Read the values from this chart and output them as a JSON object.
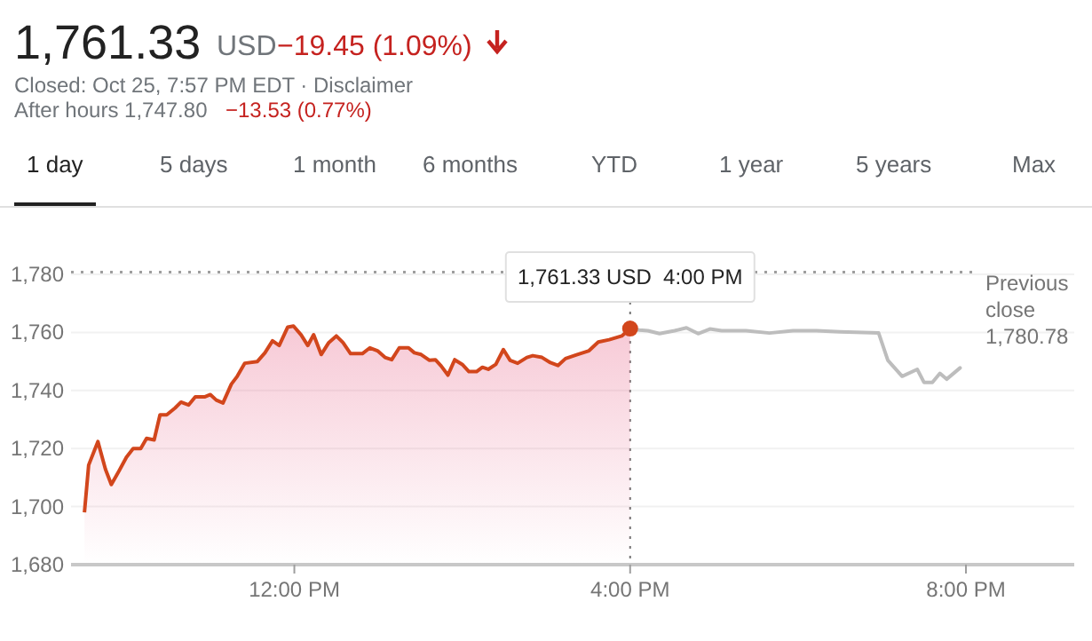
{
  "chart_data": {
    "type": "line",
    "title": "1,761.33",
    "subtitle": "USD",
    "annotations": [
      "−19.45 (1.09%)",
      "Closed: Oct 25, 7:57 PM EDT · Disclaimer",
      "After hours 1,747.80",
      "−13.53 (0.77%)",
      "1 day",
      "5 days",
      "1 month",
      "6 months",
      "YTD",
      "1 year",
      "5 years",
      "Max",
      {
        "text": "1,761.33 USD  4:00 PM",
        "x": 16,
        "y": 1761.33
      }
    ],
    "xlim": [
      9.34,
      21.29
    ],
    "xticks": [
      {
        "value": 12,
        "label": "12:00 PM"
      },
      {
        "value": 16,
        "label": "4:00 PM"
      },
      {
        "value": 20,
        "label": "8:00 PM"
      }
    ],
    "ylim": [
      1680,
      1784
    ],
    "yticks": [
      {
        "value": 1680,
        "label": "1,680"
      },
      {
        "value": 1700,
        "label": "1,700"
      },
      {
        "value": 1720,
        "label": "1,720"
      },
      {
        "value": 1740,
        "label": "1,740"
      },
      {
        "value": 1760,
        "label": "1,760"
      },
      {
        "value": 1780,
        "label": "1,780"
      }
    ],
    "grid": "y",
    "ref_lines": [
      {
        "axis": "y",
        "value": 1780.78,
        "label": "Previous close 1,780.78",
        "color": "#9e9e9e",
        "line_style": "dotted"
      },
      {
        "axis": "x",
        "value": 16,
        "color": "#757575",
        "line_style": "dotted"
      }
    ],
    "series": [
      {
        "type": "area",
        "color": "#d2461c",
        "x": [
          9.5,
          9.55,
          9.66,
          9.75,
          9.82,
          9.91,
          10.0,
          10.08,
          10.17,
          10.24,
          10.33,
          10.4,
          10.48,
          10.58,
          10.65,
          10.74,
          10.82,
          10.93,
          11.0,
          11.07,
          11.15,
          11.25,
          11.32,
          11.41,
          11.56,
          11.65,
          11.74,
          11.82,
          11.92,
          11.99,
          12.08,
          12.16,
          12.23,
          12.32,
          12.41,
          12.5,
          12.58,
          12.67,
          12.81,
          12.9,
          12.99,
          13.08,
          13.16,
          13.25,
          13.36,
          13.43,
          13.51,
          13.61,
          13.68,
          13.75,
          13.83,
          13.91,
          14.0,
          14.08,
          14.17,
          14.24,
          14.31,
          14.4,
          14.49,
          14.57,
          14.66,
          14.77,
          14.84,
          14.95,
          15.05,
          15.14,
          15.23,
          15.37,
          15.51,
          15.62,
          15.75,
          15.9,
          16.0
        ],
        "values": [
          1698,
          1714.3,
          1722.4,
          1712.9,
          1707.6,
          1712.2,
          1717,
          1720,
          1720,
          1723.5,
          1723,
          1731.6,
          1731.6,
          1734,
          1736,
          1735,
          1737.8,
          1737.8,
          1738.6,
          1736.7,
          1735.7,
          1742.2,
          1744.9,
          1749.4,
          1750,
          1753,
          1757.1,
          1755.5,
          1761.8,
          1762.2,
          1759.2,
          1755.5,
          1759.2,
          1752.4,
          1756.5,
          1758.8,
          1756.5,
          1752.7,
          1752.7,
          1754.7,
          1753.7,
          1751.4,
          1750.6,
          1754.7,
          1754.7,
          1753,
          1752.4,
          1750.4,
          1750.6,
          1748.4,
          1745.3,
          1750.6,
          1749,
          1746.5,
          1746.5,
          1748,
          1747.3,
          1749,
          1754.1,
          1750.4,
          1749.4,
          1751.4,
          1752,
          1751.4,
          1749.6,
          1748.6,
          1751,
          1752.4,
          1753.7,
          1756.7,
          1757.5,
          1758.8,
          1761.33
        ]
      },
      {
        "color": "#bdbdbd",
        "x": [
          16.0,
          16.11,
          16.21,
          16.35,
          16.53,
          16.67,
          16.81,
          16.95,
          17.09,
          17.38,
          17.66,
          17.94,
          18.22,
          18.5,
          18.96,
          19.07,
          19.24,
          19.42,
          19.5,
          19.6,
          19.69,
          19.77,
          19.93
        ],
        "values": [
          1761.33,
          1760.8,
          1760.6,
          1759.6,
          1760.6,
          1761.6,
          1759.6,
          1761.2,
          1760.6,
          1760.6,
          1759.8,
          1760.6,
          1760.6,
          1760.2,
          1759.8,
          1750.4,
          1744.9,
          1747.3,
          1742.8,
          1742.8,
          1745.9,
          1743.9,
          1747.8
        ]
      },
      {
        "type": "scatter",
        "color": "#d2461c",
        "x": [
          16
        ],
        "values": [
          1761.33
        ]
      }
    ]
  }
}
